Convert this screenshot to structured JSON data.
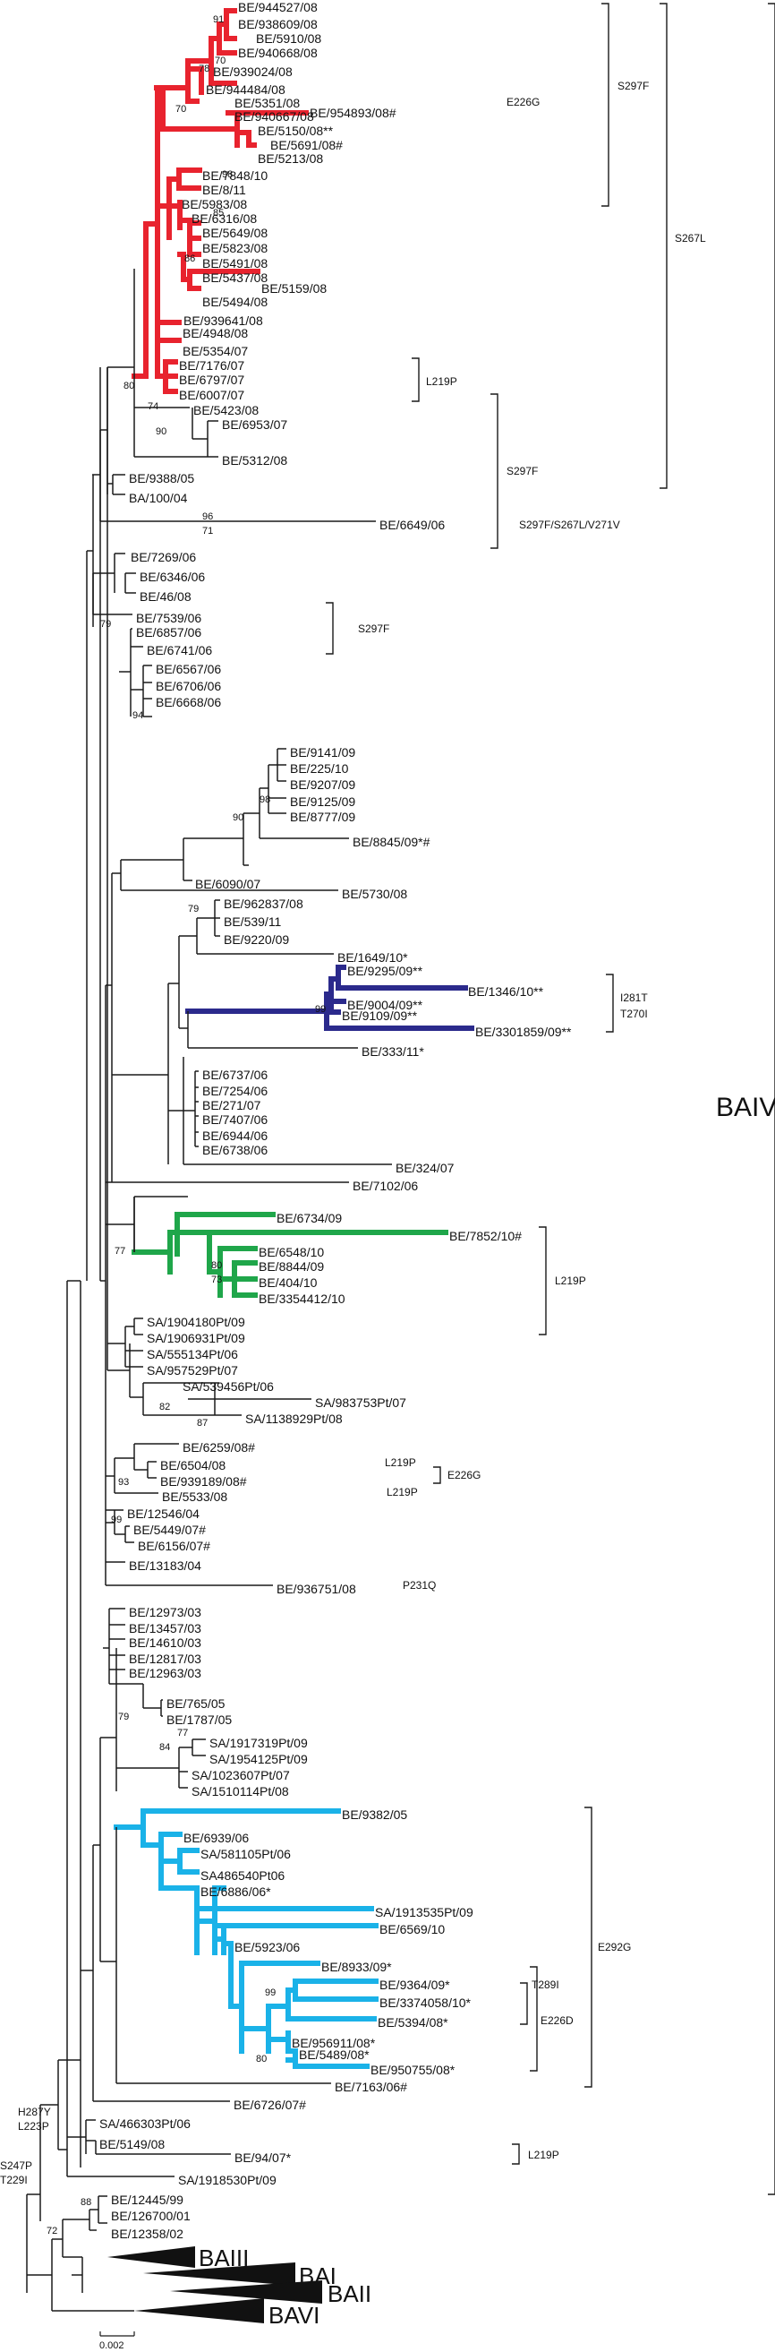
{
  "colors": {
    "default": "#1a1a1a",
    "red": "#e8232e",
    "navy": "#2b2a8c",
    "green": "#1fa64a",
    "cyan": "#1ab2e8"
  },
  "labels": {
    "L1": "BE/944527/08",
    "L2": "BE/938609/08",
    "L3": "BE/5910/08",
    "L4": "BE/940668/08",
    "L5": "BE/939024/08",
    "L6": "BE/944484/08",
    "L7": "BE/5351/08",
    "L8": "BE/940667/08",
    "L9": "BE/954893/08#",
    "L10": "BE/5150/08**",
    "L11": "BE/5691/08#",
    "L12": "BE/5213/08",
    "L13": "BE/7848/10",
    "L14": "BE/8/11",
    "L15": "BE/5983/08",
    "L16": "BE/6316/08",
    "L17": "BE/5649/08",
    "L18": "BE/5823/08",
    "L19": "BE/5491/08",
    "L20": "BE/5437/08",
    "L21": "BE/5159/08",
    "L22": "BE/5494/08",
    "L23": "BE/939641/08",
    "L24": "BE/4948/08",
    "L25": "BE/5354/07",
    "L26": "BE/7176/07",
    "L27": "BE/6797/07",
    "L28": "BE/6007/07",
    "L29": "BE/5423/08",
    "L30": "BE/6953/07",
    "L31": "BE/5312/08",
    "L32": "BE/9388/05",
    "L33": "BA/100/04",
    "L34": "BE/6649/06",
    "L35": "BE/7269/06",
    "L36": "BE/6346/06",
    "L37": "BE/46/08",
    "L38": "BE/7539/06",
    "L39": "BE/6857/06",
    "L40": "BE/6741/06",
    "L41": "BE/6567/06",
    "L42": "BE/6706/06",
    "L43": "BE/6668/06",
    "L44": "BE/9141/09",
    "L45": "BE/225/10",
    "L46": "BE/9207/09",
    "L47": "BE/9125/09",
    "L48": "BE/8777/09",
    "L49": "BE/8845/09*#",
    "L50": "BE/6090/07",
    "L51": "BE/5730/08",
    "L52": "BE/962837/08",
    "L53": "BE/539/11",
    "L54": "BE/9220/09",
    "L55": "BE/1649/10*",
    "L56": "BE/9295/09**",
    "L57": "BE/1346/10**",
    "L58": "BE/9004/09**",
    "L59": "BE/9109/09**",
    "L60": "BE/3301859/09**",
    "L61": "BE/333/11*",
    "L62": "BE/6737/06",
    "L63": "BE/7254/06",
    "L64": "BE/271/07",
    "L65": "BE/7407/06",
    "L66": "BE/6944/06",
    "L67": "BE/6738/06",
    "L68": "BE/324/07",
    "L69": "BE/7102/06",
    "L70": "BE/6734/09",
    "L71": "BE/7852/10#",
    "L72": "BE/6548/10",
    "L73": "BE/8844/09",
    "L74": "BE/404/10",
    "L75": "BE/3354412/10",
    "L76": "SA/1904180Pt/09",
    "L77": "SA/1906931Pt/09",
    "L78": "SA/555134Pt/06",
    "L79": "SA/957529Pt/07",
    "L80": "SA/539456Pt/06",
    "L81": "SA/983753Pt/07",
    "L82": "SA/1138929Pt/08",
    "L83": "BE/6259/08#",
    "L84": "BE/6504/08",
    "L85": "BE/939189/08#",
    "L86": "BE/5533/08",
    "L87": "BE/12546/04",
    "L88": "BE/5449/07#",
    "L89": "BE/6156/07#",
    "L90": "BE/13183/04",
    "L91": "BE/936751/08",
    "L92": "BE/12973/03",
    "L93": "BE/13457/03",
    "L94": "BE/14610/03",
    "L95": "BE/12817/03",
    "L96": "BE/12963/03",
    "L97": "BE/765/05",
    "L98": "BE/1787/05",
    "L99": "SA/1917319Pt/09",
    "L100": "SA/1954125Pt/09",
    "L101": "SA/1023607Pt/07",
    "L102": "SA/1510114Pt/08",
    "L103": "BE/9382/05",
    "L104": "BE/6939/06",
    "L105": "SA/581105Pt/06",
    "L106": "SA486540Pt06",
    "L107": "BE/6886/06*",
    "L108": "SA/1913535Pt/09",
    "L109": "BE/6569/10",
    "L110": "BE/5923/06",
    "L111": "BE/8933/09*",
    "L112": "BE/9364/09*",
    "L113": "BE/3374058/10*",
    "L114": "BE/5394/08*",
    "L115": "BE/956911/08*",
    "L116": "BE/5489/08*",
    "L117": "BE/950755/08*",
    "L118": "BE/7163/06#",
    "L119": "BE/6726/07#",
    "L120": "SA/466303Pt/06",
    "L121": "BE/5149/08",
    "L122": "BE/94/07*",
    "L123": "SA/1918530Pt/09",
    "L124": "BE/12445/99",
    "L125": "BE/126700/01",
    "L126": "BE/12358/02"
  },
  "bootstrap": {
    "b1": "91",
    "b2": "70",
    "b3": "78",
    "b4": "70",
    "b5": "98",
    "b6": "85",
    "b7": "86",
    "b8": "74",
    "b9": "90",
    "b10": "80",
    "b11": "96",
    "b12": "71",
    "b13": "79",
    "b14": "94",
    "b15": "98",
    "b16": "90",
    "b17": "79",
    "b18": "99",
    "b19": "77",
    "b20": "80",
    "b21": "73",
    "b22": "82",
    "b23": "87",
    "b24": "93",
    "b25": "99",
    "b26": "79",
    "b27": "84",
    "b28": "77",
    "b29": "99",
    "b30": "80",
    "b31": "88",
    "b32": "72"
  },
  "mutations": {
    "m_e226g_a": "E226G",
    "m_s297f_a": "S297F",
    "m_s267l": "S267L",
    "m_l219p_a": "L219P",
    "m_s297f_b": "S297F",
    "m_s297f_s267l_v271v": "S297F/S267L/V271V",
    "m_s297f_c": "S297F",
    "m_i281t": "I281T",
    "m_t270i": "T270I",
    "m_l219p_b": "L219P",
    "m_l219p_c": "L219P",
    "m_e226g_b": "E226G",
    "m_l219p_d": "L219P",
    "m_p231q": "P231Q",
    "m_e292g": "E292G",
    "m_t289i": "T289I",
    "m_e226d": "E226D",
    "m_h287y": "H287Y",
    "m_l223p": "L223P",
    "m_s247p": "S247P",
    "m_t229i": "T229I",
    "m_l219p_e": "L219P"
  },
  "genotypes": {
    "baiv": "BAIV",
    "baiii": "BAIII",
    "bai": "BAI",
    "baii": "BAII",
    "bavi": "BAVI"
  },
  "scale": {
    "label": "0.002"
  }
}
